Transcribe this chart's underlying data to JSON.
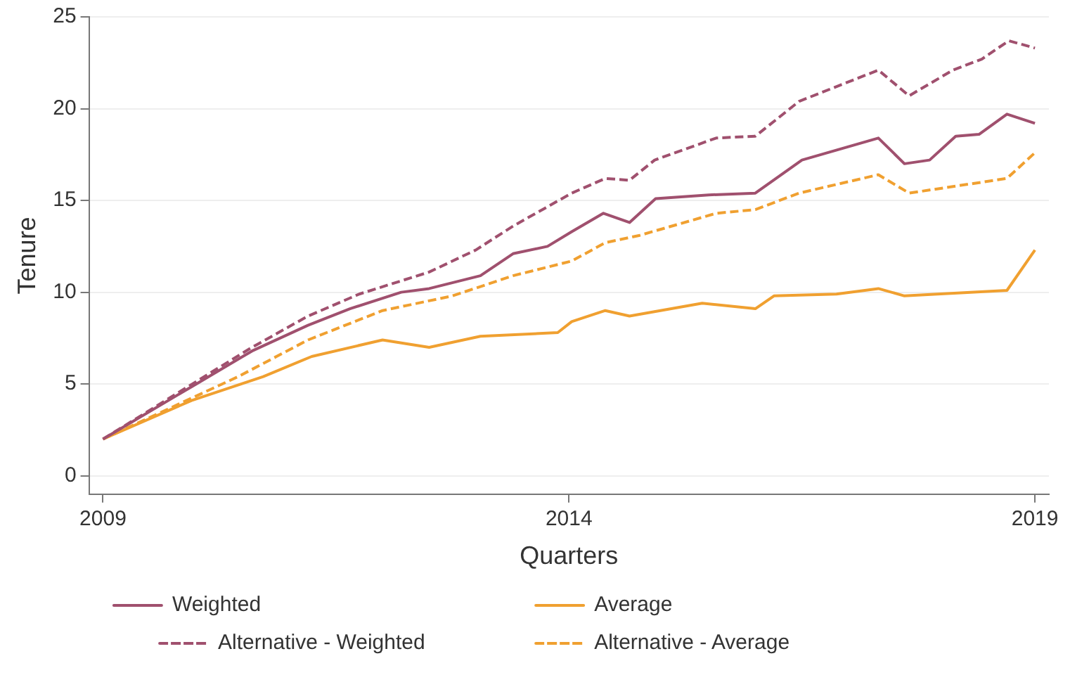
{
  "chart_data": {
    "type": "line",
    "xlabel": "Quarters",
    "ylabel": "Tenure",
    "xlim": [
      2008.85,
      2019.15
    ],
    "xticks": [
      2009,
      2014,
      2019
    ],
    "ylim": [
      -1,
      25
    ],
    "yticks": [
      0,
      5,
      10,
      15,
      20,
      25
    ],
    "grid": "y",
    "legend": "bottom",
    "marker": "none",
    "series": [
      {
        "name": "Weighted",
        "color": "#a0506e",
        "line_style": "solid",
        "x": [
          2009,
          2010,
          2010.6,
          2011.2,
          2011.65,
          2012.2,
          2012.5,
          2013.05,
          2013.4,
          2013.77,
          2014.03,
          2014.37,
          2014.65,
          2014.93,
          2015.5,
          2016,
          2016.5,
          2017.32,
          2017.6,
          2017.87,
          2018.15,
          2018.4,
          2018.7,
          2019
        ],
        "values": [
          2,
          5,
          6.8,
          8.2,
          9.1,
          10,
          10.2,
          10.9,
          12.1,
          12.5,
          13.3,
          14.3,
          13.8,
          15.1,
          15.3,
          15.4,
          17.2,
          18.4,
          17,
          17.2,
          18.5,
          18.6,
          19.7,
          19.2
        ]
      },
      {
        "name": "Average",
        "color": "#f0a030",
        "line_style": "solid",
        "x": [
          2009,
          2009.95,
          2010.72,
          2011.24,
          2012,
          2012.5,
          2013.05,
          2013.88,
          2014.03,
          2014.39,
          2014.65,
          2015.43,
          2016,
          2016.2,
          2016.87,
          2017.32,
          2017.6,
          2018.7,
          2019
        ],
        "values": [
          2,
          4.1,
          5.4,
          6.5,
          7.4,
          7,
          7.6,
          7.8,
          8.4,
          9,
          8.7,
          9.4,
          9.1,
          9.8,
          9.9,
          10.2,
          9.8,
          10.1,
          12.3
        ]
      },
      {
        "name": "Alternative - Weighted",
        "color": "#a0506e",
        "line_style": "dashed",
        "x": [
          2009,
          2010.15,
          2010.6,
          2011.2,
          2011.75,
          2012.5,
          2013,
          2013.4,
          2014.03,
          2014.39,
          2014.65,
          2014.92,
          2015.58,
          2016,
          2016.47,
          2017.32,
          2017.65,
          2018.12,
          2018.43,
          2018.72,
          2019
        ],
        "values": [
          2,
          5.6,
          7,
          8.7,
          9.9,
          11.1,
          12.3,
          13.6,
          15.4,
          16.2,
          16.1,
          17.2,
          18.4,
          18.5,
          20.4,
          22.1,
          20.7,
          22.1,
          22.7,
          23.7,
          23.3
        ]
      },
      {
        "name": "Alternative - Average",
        "color": "#f0a030",
        "line_style": "dashed",
        "x": [
          2009,
          2010.45,
          2011.2,
          2012,
          2012.75,
          2013.4,
          2014.03,
          2014.39,
          2014.76,
          2015.58,
          2016,
          2016.47,
          2017.32,
          2017.65,
          2018.7,
          2019
        ],
        "values": [
          2,
          5.4,
          7.4,
          9,
          9.8,
          10.9,
          11.7,
          12.7,
          13.1,
          14.3,
          14.5,
          15.4,
          16.4,
          15.4,
          16.2,
          17.6
        ]
      }
    ]
  }
}
